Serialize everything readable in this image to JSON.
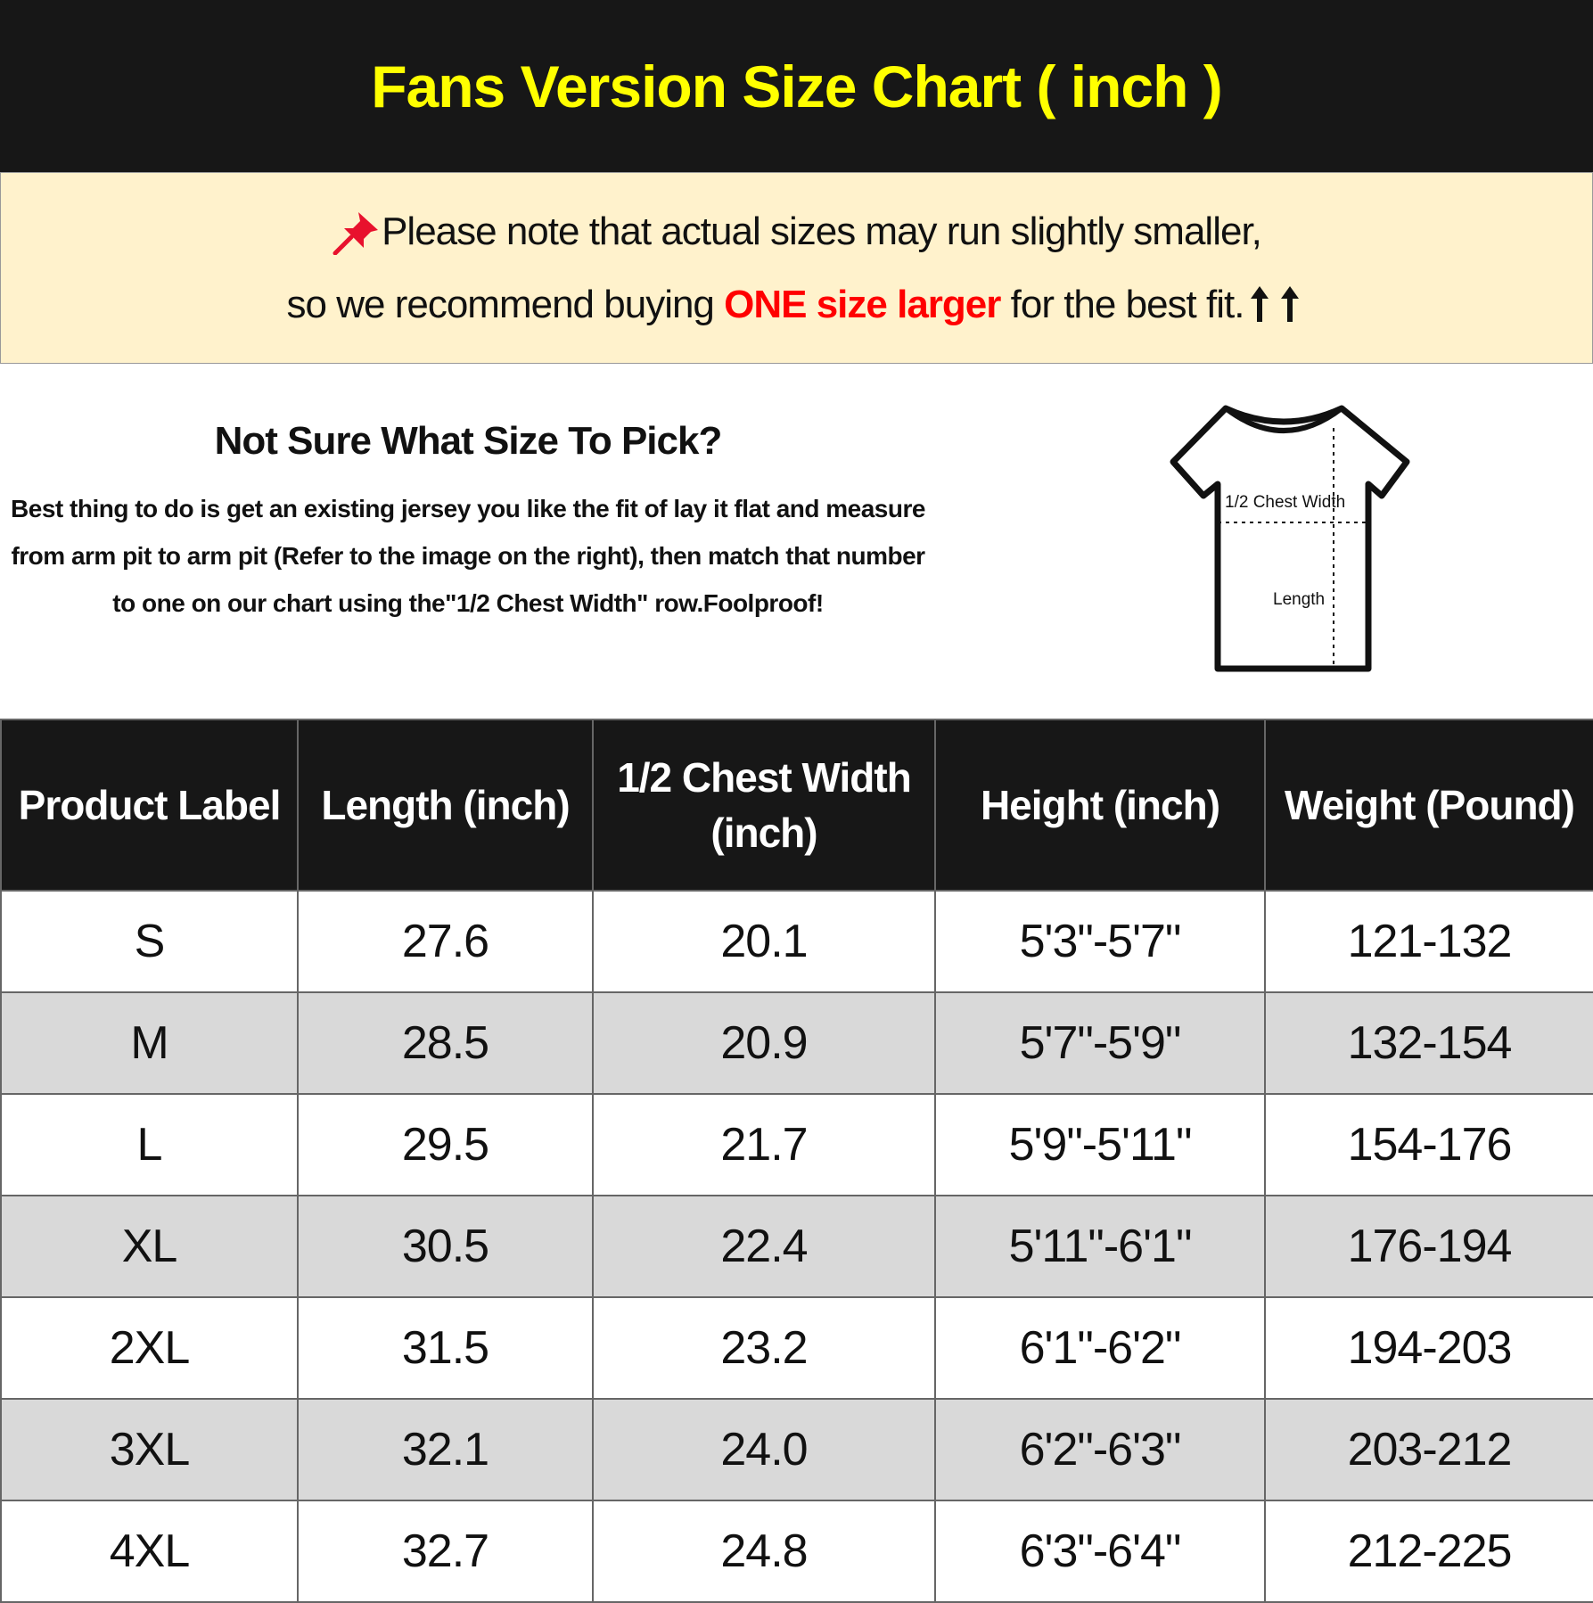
{
  "header": {
    "title": "Fans Version Size Chart ( inch )"
  },
  "notice": {
    "line1": "Please note that actual sizes may run slightly smaller,",
    "line2_start": "so we recommend buying ",
    "line2_highlight": "ONE size larger",
    "line2_end": " for the best fit."
  },
  "info": {
    "heading": "Not Sure What Size To Pick?",
    "body": "Best thing to do is get an existing jersey you like the fit of lay it flat and measure from arm pit to arm pit (Refer to the image on the right), then match that number to one on our chart using the\"1/2 Chest Width\" row.Foolproof!",
    "diagram_chest_label": "1/2 Chest Width",
    "diagram_length_label": "Length"
  },
  "table": {
    "headers": [
      "Product Label",
      "Length (inch)",
      "1/2 Chest Width (inch)",
      "Height (inch)",
      "Weight (Pound)"
    ],
    "rows": [
      [
        "S",
        "27.6",
        "20.1",
        "5'3\"-5'7\"",
        "121-132"
      ],
      [
        "M",
        "28.5",
        "20.9",
        "5'7\"-5'9\"",
        "132-154"
      ],
      [
        "L",
        "29.5",
        "21.7",
        "5'9\"-5'11\"",
        "154-176"
      ],
      [
        "XL",
        "30.5",
        "22.4",
        "5'11\"-6'1\"",
        "176-194"
      ],
      [
        "2XL",
        "31.5",
        "23.2",
        "6'1\"-6'2\"",
        "194-203"
      ],
      [
        "3XL",
        "32.1",
        "24.0",
        "6'2\"-6'3\"",
        "203-212"
      ],
      [
        "4XL",
        "32.7",
        "24.8",
        "6'3\"-6'4\"",
        "212-225"
      ]
    ]
  }
}
